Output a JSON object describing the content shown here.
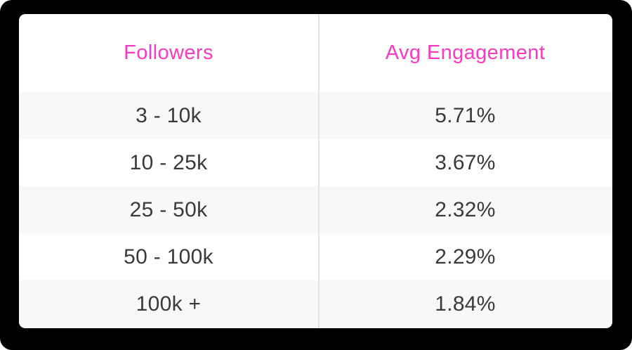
{
  "chart_data": {
    "type": "table",
    "columns": [
      "Followers",
      "Avg Engagement"
    ],
    "rows": [
      [
        "3 - 10k",
        "5.71%"
      ],
      [
        "10 - 25k",
        "3.67%"
      ],
      [
        "25 - 50k",
        "2.32%"
      ],
      [
        "50 - 100k",
        "2.29%"
      ],
      [
        "100k +",
        "1.84%"
      ]
    ],
    "follower_buckets": [
      "3 - 10k",
      "10 - 25k",
      "25 - 50k",
      "50 - 100k",
      "100k +"
    ],
    "avg_engagement_percent": [
      5.71,
      3.67,
      2.32,
      2.29,
      1.84
    ],
    "layout_hints": {
      "header_row": true,
      "striped_rows": "odd rows light gray",
      "column_divider": true,
      "text_alignment": "center"
    }
  },
  "colors": {
    "header_text": "#fb3ac2",
    "body_text": "#3a3a3c",
    "row_stripe": "#f8f8f9",
    "card_background": "#ffffff",
    "outer_background": "#000000",
    "column_divider": "#e4e4e4"
  }
}
